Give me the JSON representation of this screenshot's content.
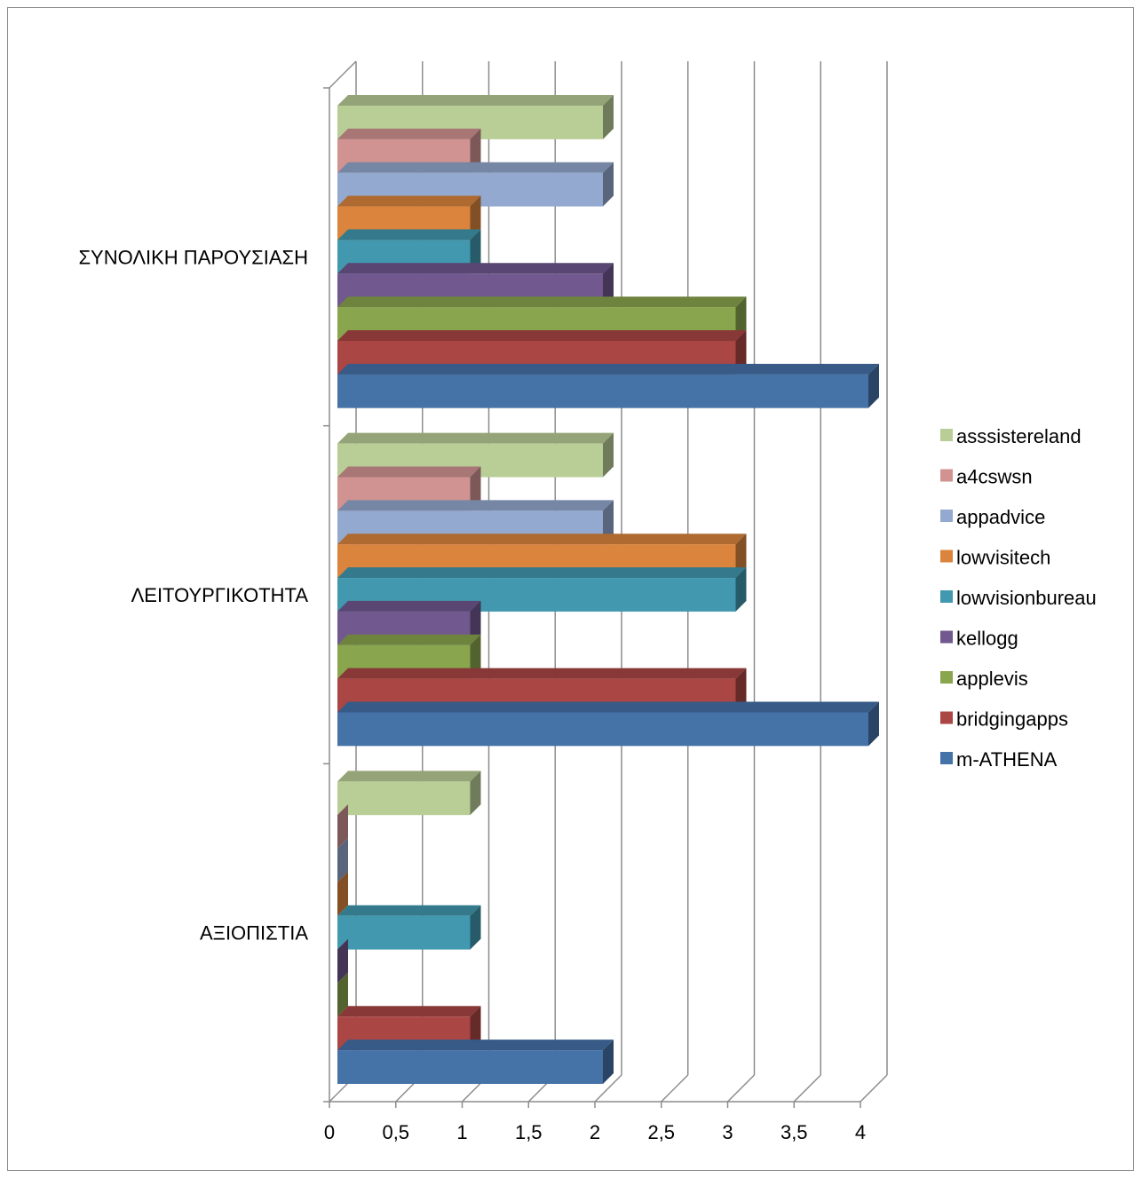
{
  "chart_data": {
    "type": "bar",
    "orientation": "horizontal",
    "style": "3d-clustered",
    "title": "",
    "xlabel": "",
    "ylabel": "",
    "xlim": [
      0,
      4
    ],
    "x_ticks": [
      "0",
      "0,5",
      "1",
      "1,5",
      "2",
      "2,5",
      "3",
      "3,5",
      "4"
    ],
    "grid": true,
    "legend_position": "right",
    "categories": [
      "ΑΞΙΟΠΙΣΤΙΑ",
      "ΛΕΙΤΟΥΡΓΙΚΟΤΗΤΑ",
      "ΣΥΝΟΛΙΚΗ ΠΑΡΟΥΣΙΑΣΗ"
    ],
    "series": [
      {
        "name": "m-ATHENA",
        "color": "#4572A7",
        "values": [
          2,
          4,
          4
        ]
      },
      {
        "name": "bridgingapps",
        "color": "#AA4643",
        "values": [
          1,
          3,
          3
        ]
      },
      {
        "name": "applevis",
        "color": "#89A54E",
        "values": [
          0,
          1,
          3
        ]
      },
      {
        "name": "kellogg",
        "color": "#71588F",
        "values": [
          0,
          1,
          2
        ]
      },
      {
        "name": "lowvisionbureau",
        "color": "#4198AF",
        "values": [
          1,
          3,
          1
        ]
      },
      {
        "name": "lowvisitech",
        "color": "#DB843D",
        "values": [
          0,
          3,
          1
        ]
      },
      {
        "name": "appadvice",
        "color": "#93A9CF",
        "values": [
          0,
          2,
          2
        ]
      },
      {
        "name": "a4cswsn",
        "color": "#D19392",
        "values": [
          0,
          1,
          1
        ]
      },
      {
        "name": "asssistereland",
        "color": "#B9CD96",
        "values": [
          1,
          2,
          2
        ]
      }
    ]
  }
}
